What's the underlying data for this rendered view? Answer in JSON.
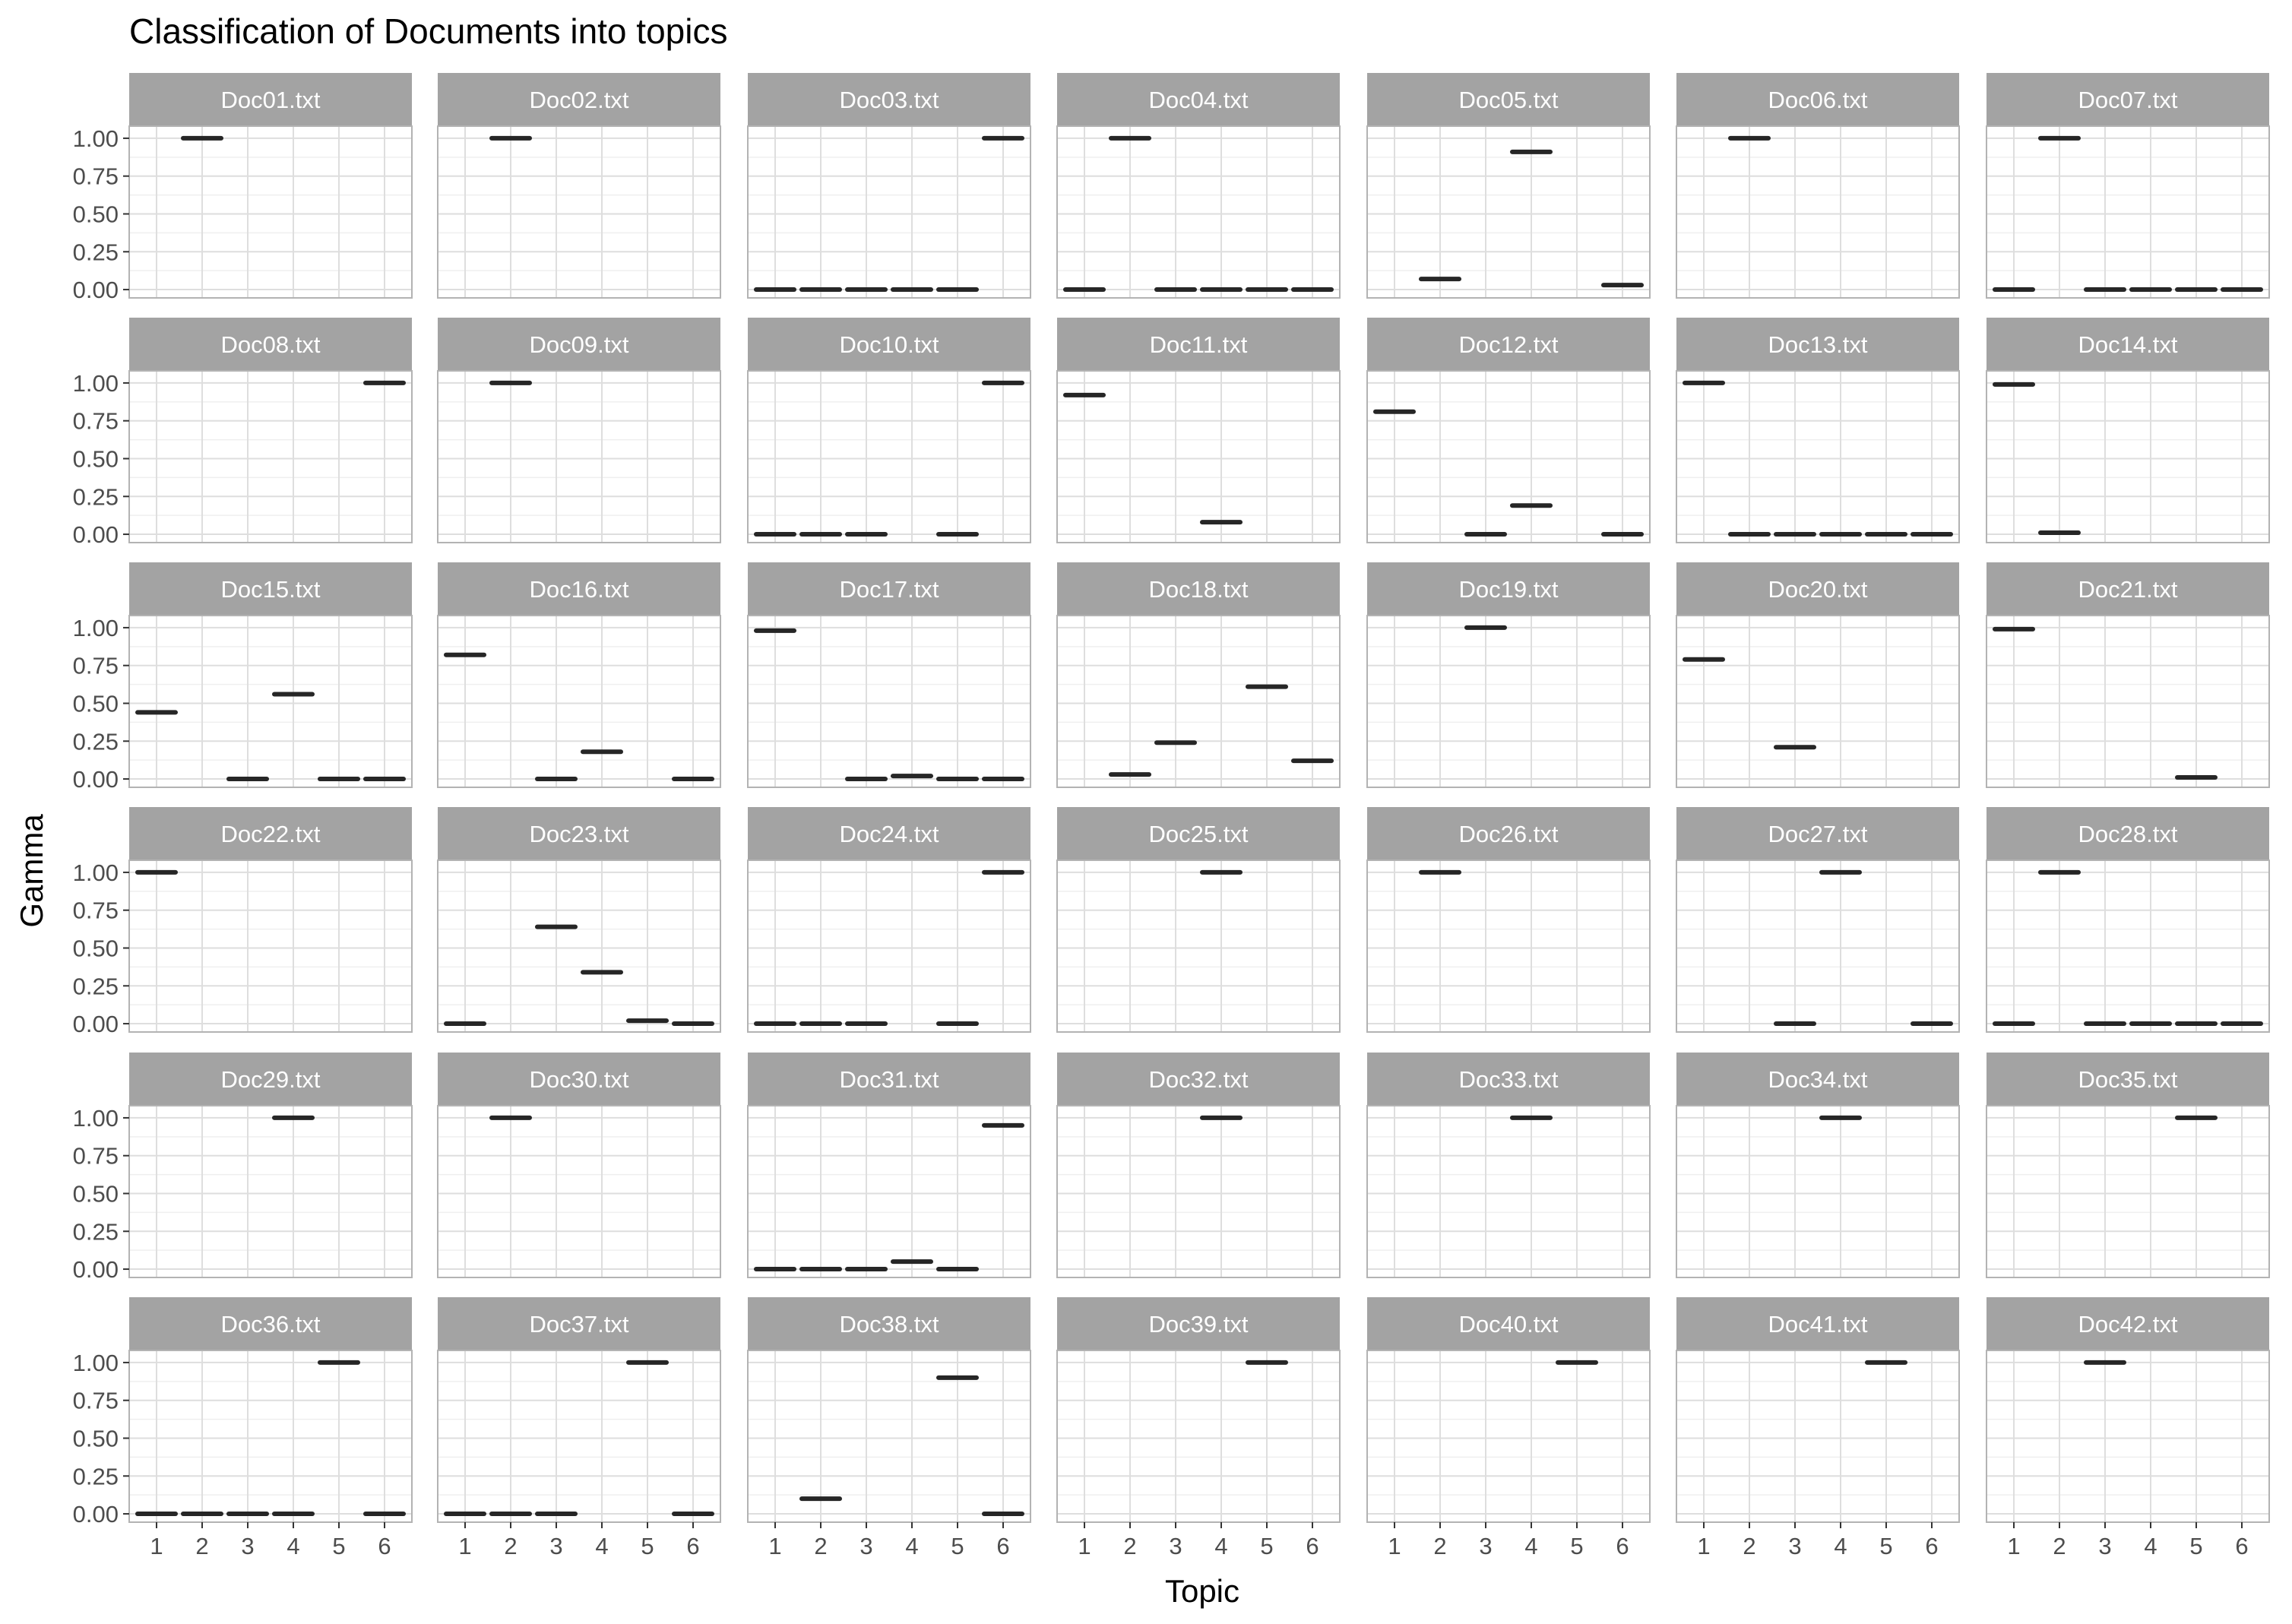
{
  "chart_data": {
    "type": "scatter",
    "marker": "horizontal-crossbar",
    "title": "Classification of Documents into topics",
    "xlabel": "Topic",
    "ylabel": "Gamma",
    "layout": {
      "rows": 6,
      "cols": 7,
      "strip_position": "top"
    },
    "x_categories": [
      "1",
      "2",
      "3",
      "4",
      "5",
      "6"
    ],
    "ylim": [
      0,
      1.0
    ],
    "y_ticks": [
      0.0,
      0.25,
      0.5,
      0.75,
      1.0
    ],
    "y_tick_labels": [
      "0.00",
      "0.25",
      "0.50",
      "0.75",
      "1.00"
    ],
    "grid": true,
    "colors": {
      "strip": "#a3a3a3",
      "strip_text": "#ffffff",
      "panel_border": "#b3b3b3",
      "grid_major": "#dedede",
      "grid_minor": "#efefef",
      "mark": "#262626",
      "tick_text": "#4d4d4d"
    },
    "facets": [
      {
        "label": "Doc01.txt",
        "gamma": [
          null,
          1.0,
          null,
          null,
          null,
          null
        ]
      },
      {
        "label": "Doc02.txt",
        "gamma": [
          null,
          1.0,
          null,
          null,
          null,
          null
        ]
      },
      {
        "label": "Doc03.txt",
        "gamma": [
          0.0,
          0.0,
          0.0,
          0.0,
          0.0,
          1.0
        ]
      },
      {
        "label": "Doc04.txt",
        "gamma": [
          0.0,
          1.0,
          0.0,
          0.0,
          0.0,
          0.0
        ]
      },
      {
        "label": "Doc05.txt",
        "gamma": [
          null,
          0.07,
          null,
          0.91,
          null,
          0.03
        ]
      },
      {
        "label": "Doc06.txt",
        "gamma": [
          null,
          1.0,
          null,
          null,
          null,
          null
        ]
      },
      {
        "label": "Doc07.txt",
        "gamma": [
          0.0,
          1.0,
          0.0,
          0.0,
          0.0,
          0.0
        ]
      },
      {
        "label": "Doc08.txt",
        "gamma": [
          null,
          null,
          null,
          null,
          null,
          1.0
        ]
      },
      {
        "label": "Doc09.txt",
        "gamma": [
          null,
          1.0,
          null,
          null,
          null,
          null
        ]
      },
      {
        "label": "Doc10.txt",
        "gamma": [
          0.0,
          0.0,
          0.0,
          null,
          0.0,
          1.0
        ]
      },
      {
        "label": "Doc11.txt",
        "gamma": [
          0.92,
          null,
          null,
          0.08,
          null,
          null
        ]
      },
      {
        "label": "Doc12.txt",
        "gamma": [
          0.81,
          null,
          0.0,
          0.19,
          null,
          0.0
        ]
      },
      {
        "label": "Doc13.txt",
        "gamma": [
          1.0,
          0.0,
          0.0,
          0.0,
          0.0,
          0.0
        ]
      },
      {
        "label": "Doc14.txt",
        "gamma": [
          0.99,
          0.01,
          null,
          null,
          null,
          null
        ]
      },
      {
        "label": "Doc15.txt",
        "gamma": [
          0.44,
          null,
          0.0,
          0.56,
          0.0,
          0.0
        ]
      },
      {
        "label": "Doc16.txt",
        "gamma": [
          0.82,
          null,
          0.0,
          0.18,
          null,
          0.0
        ]
      },
      {
        "label": "Doc17.txt",
        "gamma": [
          0.98,
          null,
          0.0,
          0.02,
          0.0,
          0.0
        ]
      },
      {
        "label": "Doc18.txt",
        "gamma": [
          null,
          0.03,
          0.24,
          null,
          0.61,
          0.12
        ]
      },
      {
        "label": "Doc19.txt",
        "gamma": [
          null,
          null,
          1.0,
          null,
          null,
          null
        ]
      },
      {
        "label": "Doc20.txt",
        "gamma": [
          0.79,
          null,
          0.21,
          null,
          null,
          null
        ]
      },
      {
        "label": "Doc21.txt",
        "gamma": [
          0.99,
          null,
          null,
          null,
          0.01,
          null
        ]
      },
      {
        "label": "Doc22.txt",
        "gamma": [
          1.0,
          null,
          null,
          null,
          null,
          null
        ]
      },
      {
        "label": "Doc23.txt",
        "gamma": [
          0.0,
          null,
          0.64,
          0.34,
          0.02,
          0.0
        ]
      },
      {
        "label": "Doc24.txt",
        "gamma": [
          0.0,
          0.0,
          0.0,
          null,
          0.0,
          1.0
        ]
      },
      {
        "label": "Doc25.txt",
        "gamma": [
          null,
          null,
          null,
          1.0,
          null,
          null
        ]
      },
      {
        "label": "Doc26.txt",
        "gamma": [
          null,
          1.0,
          null,
          null,
          null,
          null
        ]
      },
      {
        "label": "Doc27.txt",
        "gamma": [
          null,
          null,
          0.0,
          1.0,
          null,
          0.0
        ]
      },
      {
        "label": "Doc28.txt",
        "gamma": [
          0.0,
          1.0,
          0.0,
          0.0,
          0.0,
          0.0
        ]
      },
      {
        "label": "Doc29.txt",
        "gamma": [
          null,
          null,
          null,
          1.0,
          null,
          null
        ]
      },
      {
        "label": "Doc30.txt",
        "gamma": [
          null,
          1.0,
          null,
          null,
          null,
          null
        ]
      },
      {
        "label": "Doc31.txt",
        "gamma": [
          0.0,
          0.0,
          0.0,
          0.05,
          0.0,
          0.95
        ]
      },
      {
        "label": "Doc32.txt",
        "gamma": [
          null,
          null,
          null,
          1.0,
          null,
          null
        ]
      },
      {
        "label": "Doc33.txt",
        "gamma": [
          null,
          null,
          null,
          1.0,
          null,
          null
        ]
      },
      {
        "label": "Doc34.txt",
        "gamma": [
          null,
          null,
          null,
          1.0,
          null,
          null
        ]
      },
      {
        "label": "Doc35.txt",
        "gamma": [
          null,
          null,
          null,
          null,
          1.0,
          null
        ]
      },
      {
        "label": "Doc36.txt",
        "gamma": [
          0.0,
          0.0,
          0.0,
          0.0,
          1.0,
          0.0
        ]
      },
      {
        "label": "Doc37.txt",
        "gamma": [
          0.0,
          0.0,
          0.0,
          null,
          1.0,
          0.0
        ]
      },
      {
        "label": "Doc38.txt",
        "gamma": [
          null,
          0.1,
          null,
          null,
          0.9,
          0.0
        ]
      },
      {
        "label": "Doc39.txt",
        "gamma": [
          null,
          null,
          null,
          null,
          1.0,
          null
        ]
      },
      {
        "label": "Doc40.txt",
        "gamma": [
          null,
          null,
          null,
          null,
          1.0,
          null
        ]
      },
      {
        "label": "Doc41.txt",
        "gamma": [
          null,
          null,
          null,
          null,
          1.0,
          null
        ]
      },
      {
        "label": "Doc42.txt",
        "gamma": [
          null,
          null,
          1.0,
          null,
          null,
          null
        ]
      }
    ]
  }
}
